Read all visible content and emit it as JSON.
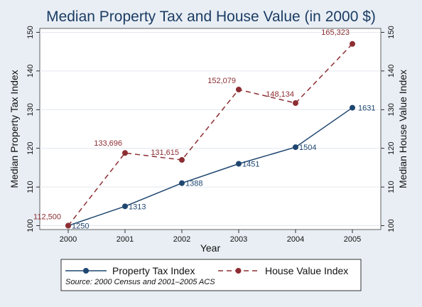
{
  "chart_data": {
    "type": "line",
    "title": "Median Property Tax and House Value (in 2000 $)",
    "xlabel": "Year",
    "ylabel_left": "Median Property Tax Index",
    "ylabel_right": "Median House Value Index",
    "categories": [
      "2000",
      "2001",
      "2002",
      "2003",
      "2004",
      "2005"
    ],
    "x": [
      2000,
      2001,
      2002,
      2003,
      2004,
      2005
    ],
    "xlim": [
      1999.5,
      2005.5
    ],
    "ylim": [
      99,
      151
    ],
    "yticks": [
      100,
      110,
      120,
      130,
      140,
      150
    ],
    "grid": "horizontal",
    "legend_position": "bottom",
    "note": "Source: 2000 Census and 2001–2005 ACS",
    "colors": {
      "tax": "#1e4670",
      "house": "#8c2e33",
      "background": "#e8eef4",
      "plot": "#ffffff"
    },
    "series": [
      {
        "name": "Property Tax Index",
        "style": "solid",
        "values": [
          100,
          105,
          111,
          116,
          120.3,
          130.5
        ],
        "labels": [
          "1250",
          "1313",
          "1388",
          "1451",
          "1504",
          "1631"
        ]
      },
      {
        "name": "House Value Index",
        "style": "dashed",
        "values": [
          100,
          118.8,
          117,
          135.2,
          131.7,
          147
        ],
        "labels": [
          "112,500",
          "133,696",
          "131,615",
          "152,079",
          "148,134",
          "165,323"
        ]
      }
    ]
  }
}
